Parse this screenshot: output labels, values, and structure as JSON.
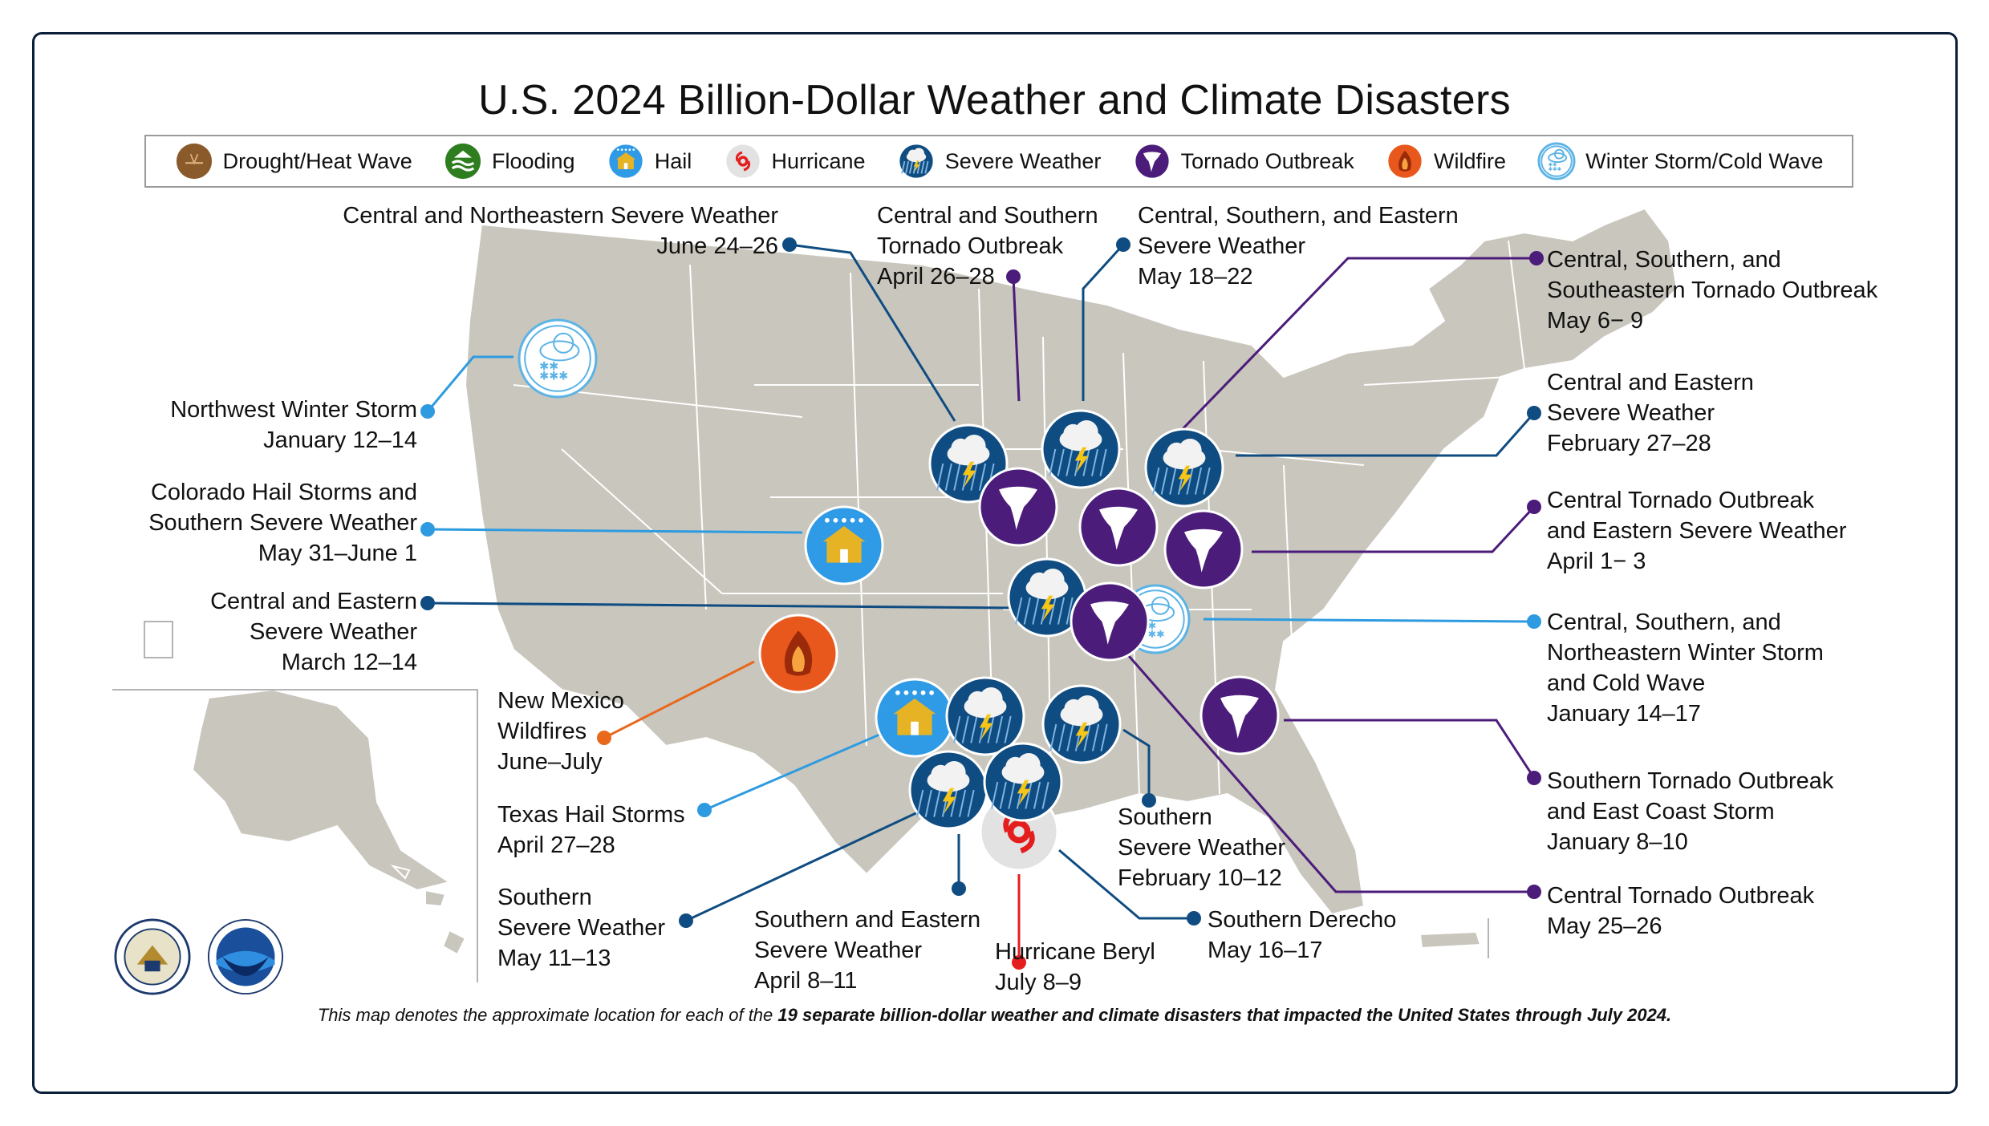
{
  "title": "U.S. 2024 Billion-Dollar Weather and Climate Disasters",
  "legend": [
    {
      "icon": "drought-heat-wave-icon",
      "label": "Drought/Heat Wave",
      "color": "#8a5a2b"
    },
    {
      "icon": "flooding-icon",
      "label": "Flooding",
      "color": "#2e7d1e"
    },
    {
      "icon": "hail-icon",
      "label": "Hail",
      "color": "#2f9ae6"
    },
    {
      "icon": "hurricane-icon",
      "label": "Hurricane",
      "color": "#d9d9d9"
    },
    {
      "icon": "severe-weather-icon",
      "label": "Severe Weather",
      "color": "#0f4c81"
    },
    {
      "icon": "tornado-outbreak-icon",
      "label": "Tornado Outbreak",
      "color": "#4b1c7a"
    },
    {
      "icon": "wildfire-icon",
      "label": "Wildfire",
      "color": "#e8581c"
    },
    {
      "icon": "winter-storm-cold-wave-icon",
      "label": "Winter Storm/Cold Wave",
      "color": "#5bb3e6"
    }
  ],
  "events": [
    {
      "id": "nw-winter",
      "type": "winter",
      "lines": [
        "Northwest Winter Storm",
        "January 12–14"
      ]
    },
    {
      "id": "co-hail",
      "type": "hail",
      "lines": [
        "Colorado Hail Storms and",
        "Southern Severe Weather",
        "May 31–June 1"
      ]
    },
    {
      "id": "ce-severe-mar",
      "type": "severe",
      "lines": [
        "Central and Eastern",
        "Severe Weather",
        "March 12–14"
      ]
    },
    {
      "id": "nm-wildfire",
      "type": "wildfire",
      "lines": [
        "New Mexico",
        "Wildfires",
        "June–July"
      ]
    },
    {
      "id": "tx-hail",
      "type": "hail",
      "lines": [
        "Texas Hail Storms",
        "April 27–28"
      ]
    },
    {
      "id": "s-severe-may",
      "type": "severe",
      "lines": [
        "Southern",
        "Severe Weather",
        "May 11–13"
      ]
    },
    {
      "id": "se-severe-apr",
      "type": "severe",
      "lines": [
        "Southern and Eastern",
        "Severe Weather",
        "April 8–11"
      ]
    },
    {
      "id": "beryl",
      "type": "hurricane",
      "lines": [
        "Hurricane Beryl",
        "July 8–9"
      ]
    },
    {
      "id": "derecho",
      "type": "severe",
      "lines": [
        "Southern Derecho",
        "May 16–17"
      ]
    },
    {
      "id": "s-severe-feb",
      "type": "severe",
      "lines": [
        "Southern",
        "Severe Weather",
        "February 10–12"
      ]
    },
    {
      "id": "cne-severe-jun",
      "type": "severe",
      "lines": [
        "Central and Northeastern Severe Weather",
        "June 24–26"
      ]
    },
    {
      "id": "cs-tornado-apr",
      "type": "tornado",
      "lines": [
        "Central and Southern",
        "Tornado Outbreak",
        "April 26–28"
      ]
    },
    {
      "id": "cse-severe-may",
      "type": "severe",
      "lines": [
        "Central, Southern, and Eastern",
        "Severe Weather",
        "May 18–22"
      ]
    },
    {
      "id": "css-tornado-may",
      "type": "tornado",
      "lines": [
        "Central, Southern, and",
        "Southeastern Tornado Outbreak",
        "May 6− 9"
      ]
    },
    {
      "id": "ce-severe-feb",
      "type": "severe",
      "lines": [
        "Central and Eastern",
        "Severe Weather",
        "February 27–28"
      ]
    },
    {
      "id": "c-tornado-apr",
      "type": "tornado",
      "lines": [
        "Central Tornado Outbreak",
        "and Eastern Severe Weather",
        "April 1− 3"
      ]
    },
    {
      "id": "csn-winter",
      "type": "winter",
      "lines": [
        "Central, Southern, and",
        "Northeastern Winter Storm",
        "and Cold Wave",
        "January 14–17"
      ]
    },
    {
      "id": "s-tornado-jan",
      "type": "tornado",
      "lines": [
        "Southern Tornado Outbreak",
        "and East Coast Storm",
        "January 8–10"
      ]
    },
    {
      "id": "c-tornado-may",
      "type": "tornado",
      "lines": [
        "Central Tornado Outbreak",
        "May 25–26"
      ]
    }
  ],
  "footer": {
    "prefix": "This map denotes the approximate location for each of the ",
    "bold": "19 separate billion-dollar weather and climate disasters that impacted the United States through July 2024."
  },
  "seals": [
    "department-of-commerce-seal",
    "noaa-logo"
  ]
}
